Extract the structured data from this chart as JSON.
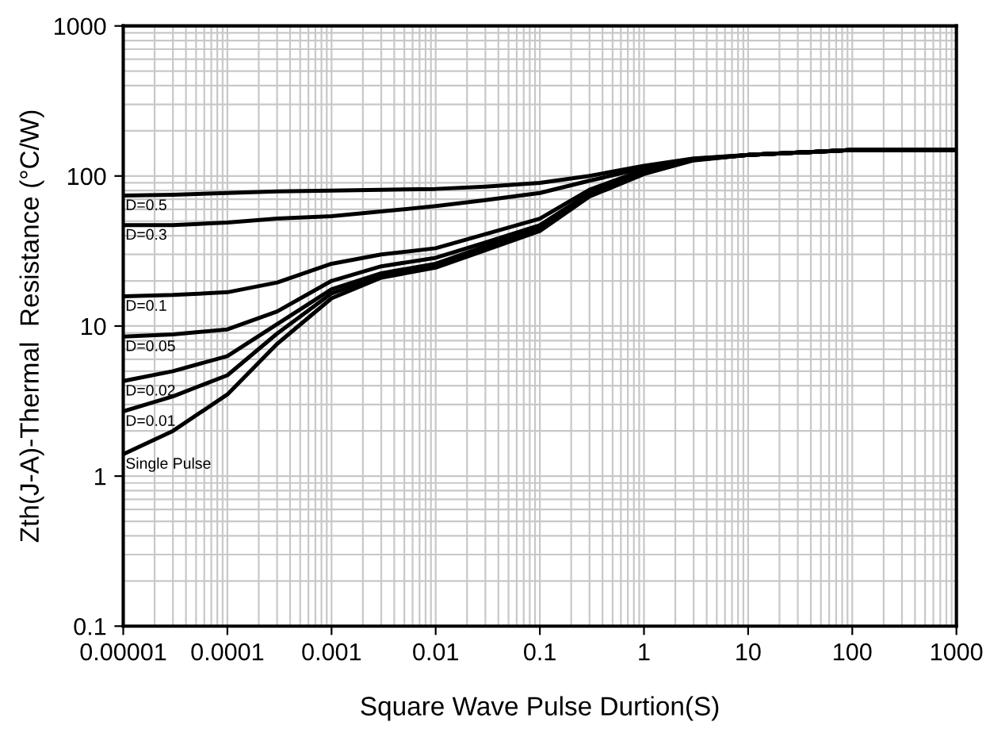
{
  "chart_data": {
    "type": "line",
    "xlabel": "Square Wave Pulse Durtion(S)",
    "ylabel": "Zth(J-A)-Thermal  Resistance (°C/W)",
    "log": "xy",
    "grid": true,
    "legend": false,
    "marker": "none",
    "line_style": "solid",
    "xlim": [
      1e-05,
      1000
    ],
    "ylim": [
      0.1,
      1000
    ],
    "xticks": [
      {
        "value": 1e-05,
        "label": "0.00001"
      },
      0.0001,
      0.001,
      0.01,
      0.1,
      1,
      10,
      100,
      1000
    ],
    "yticks": [
      0.1,
      1,
      10,
      100,
      1000
    ],
    "x": [
      1e-05,
      3e-05,
      0.0001,
      0.0003,
      0.001,
      0.003,
      0.01,
      0.03,
      0.1,
      0.3,
      1,
      3,
      10,
      100,
      1000
    ],
    "series": [
      {
        "color": "#000000",
        "values": [
          74,
          75,
          77,
          79,
          80,
          81,
          82,
          85,
          90,
          100,
          117,
          131,
          138,
          149,
          149
        ]
      },
      {
        "color": "#000000",
        "values": [
          47,
          47,
          49,
          52,
          54,
          58,
          63,
          69,
          77,
          93,
          113,
          130,
          138,
          149,
          149
        ]
      },
      {
        "color": "#000000",
        "values": [
          15.8,
          16.1,
          16.8,
          19.5,
          26,
          30,
          33,
          41,
          52,
          81,
          110,
          129,
          138,
          149,
          149
        ]
      },
      {
        "color": "#000000",
        "values": [
          8.5,
          8.8,
          9.5,
          12.5,
          20,
          25,
          28.5,
          36,
          47,
          77,
          110,
          129,
          138,
          149,
          149
        ]
      },
      {
        "color": "#000000",
        "values": [
          4.3,
          5,
          6.3,
          10.3,
          17.6,
          22.5,
          26,
          34,
          45,
          75,
          108,
          128,
          138,
          149,
          149
        ]
      },
      {
        "color": "#000000",
        "values": [
          2.7,
          3.4,
          4.7,
          8.9,
          16.5,
          21.5,
          25,
          33,
          44,
          74,
          106,
          128,
          138,
          149,
          149
        ]
      },
      {
        "color": "#000000",
        "values": [
          1.4,
          2.0,
          3.5,
          7.6,
          15.3,
          21,
          24.5,
          32,
          43,
          73,
          103,
          127,
          138,
          149,
          149
        ]
      }
    ],
    "annotations": [
      "D=0.5",
      "D=0.3",
      "D=0.1",
      "D=0.05",
      "D=0.02",
      "D=0.01",
      "Single Pulse"
    ]
  }
}
